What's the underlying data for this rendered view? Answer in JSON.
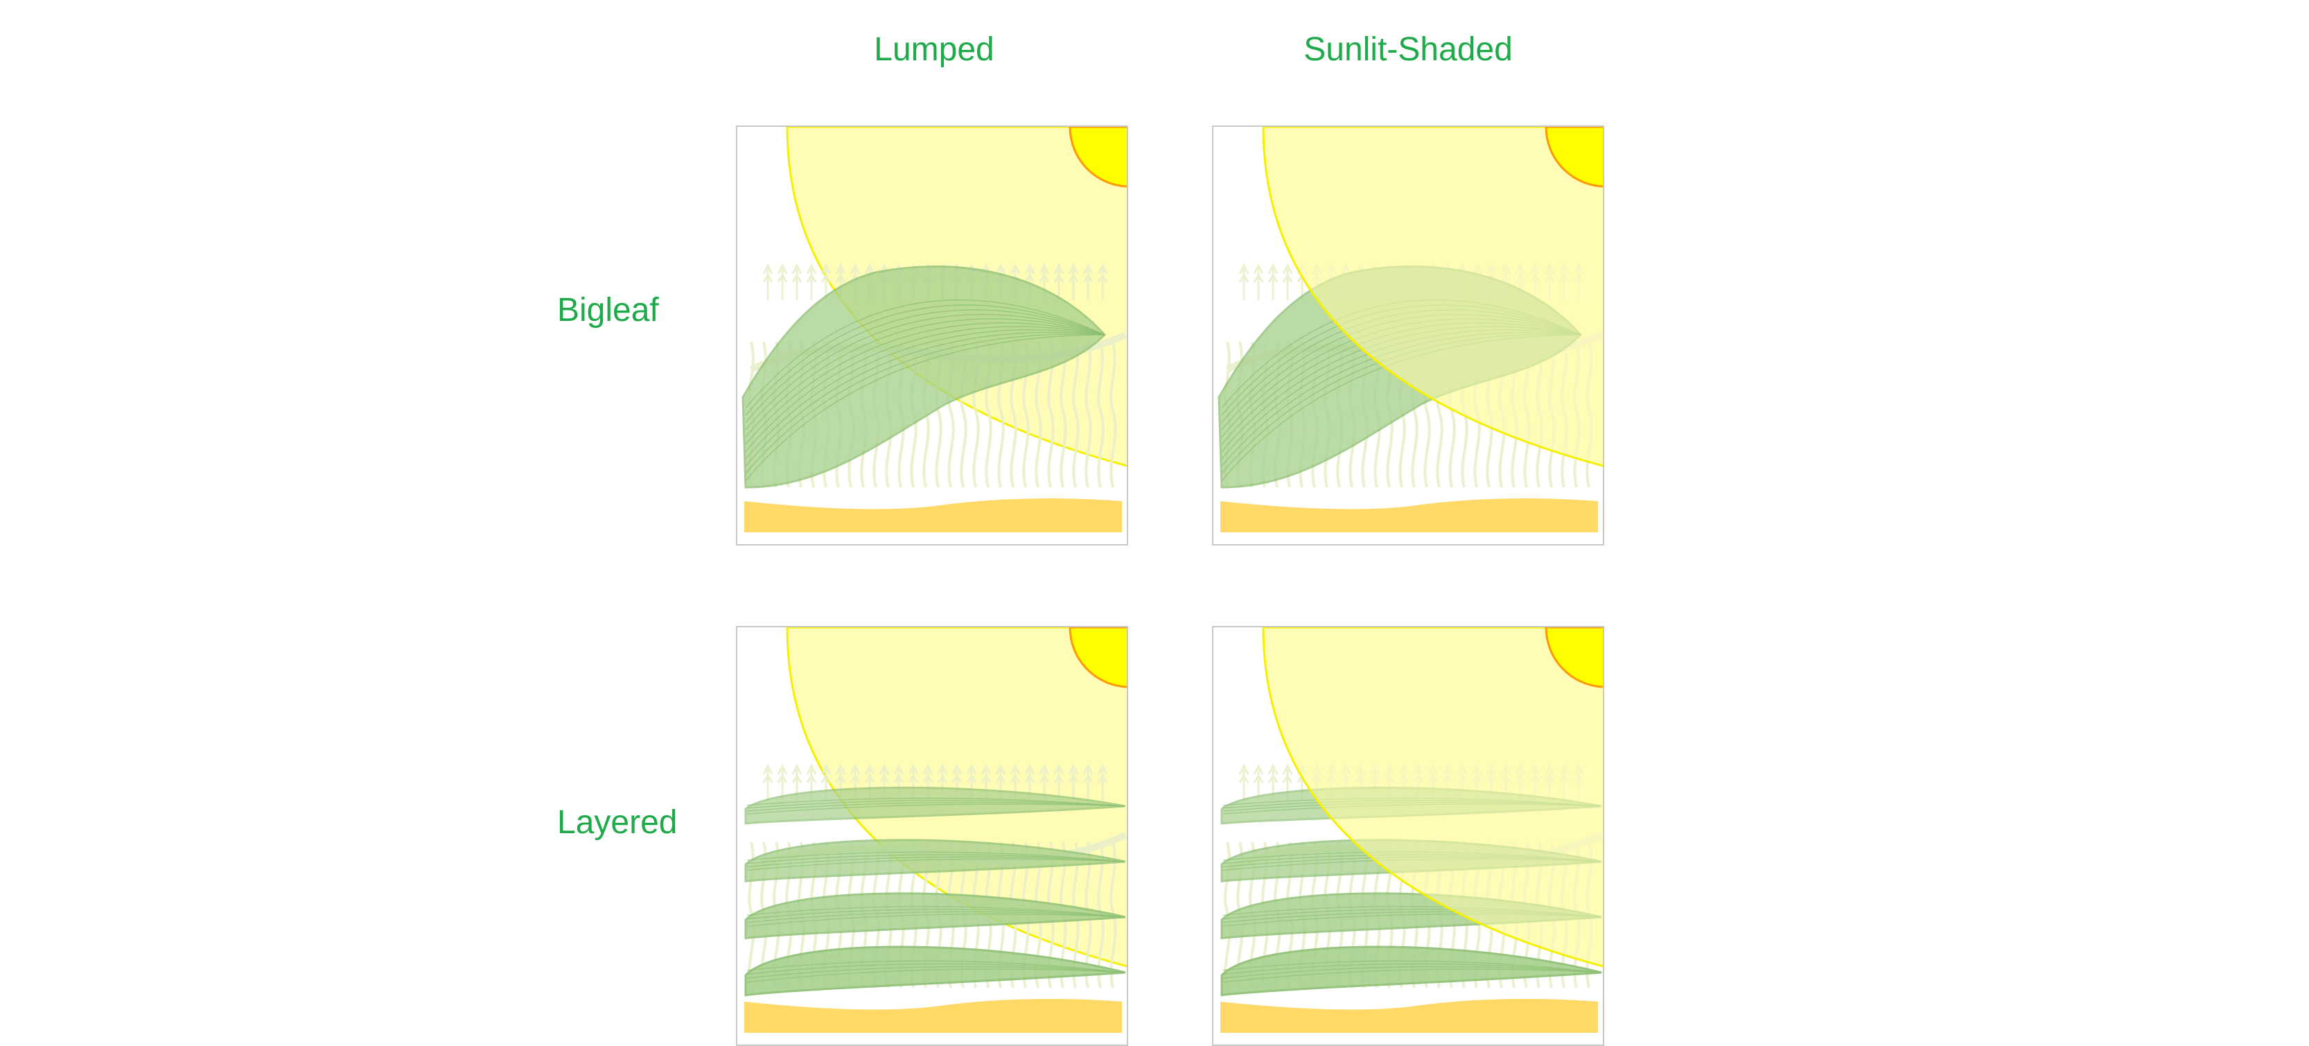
{
  "columns": {
    "lumped": "Lumped",
    "sunlit_shaded": "Sunlit-Shaded"
  },
  "rows": {
    "bigleaf": "Bigleaf",
    "layered": "Layered"
  },
  "colors": {
    "label_green": "#1faa4a",
    "leaf_fill": "#a9d18e",
    "leaf_stroke": "#8cbf72",
    "sun_core": "#ffff00",
    "sun_core_edge": "#ff9900",
    "sunlight_fill": "#fffcb5",
    "sunlight_edge": "#f5f000",
    "soil": "#ffd966",
    "crop_silhouette": "#e9efc9",
    "panel_border": "#c8c8c8"
  },
  "panels": [
    {
      "id": "bigleaf-lumped",
      "canopy": "single-leaf",
      "light": "lumped"
    },
    {
      "id": "bigleaf-sunlit-shaded",
      "canopy": "single-leaf",
      "light": "sunlit-shaded"
    },
    {
      "id": "layered-lumped",
      "canopy": "four-leaf-layers",
      "light": "lumped"
    },
    {
      "id": "layered-sunlit-shaded",
      "canopy": "four-leaf-layers",
      "light": "sunlit-shaded"
    }
  ]
}
